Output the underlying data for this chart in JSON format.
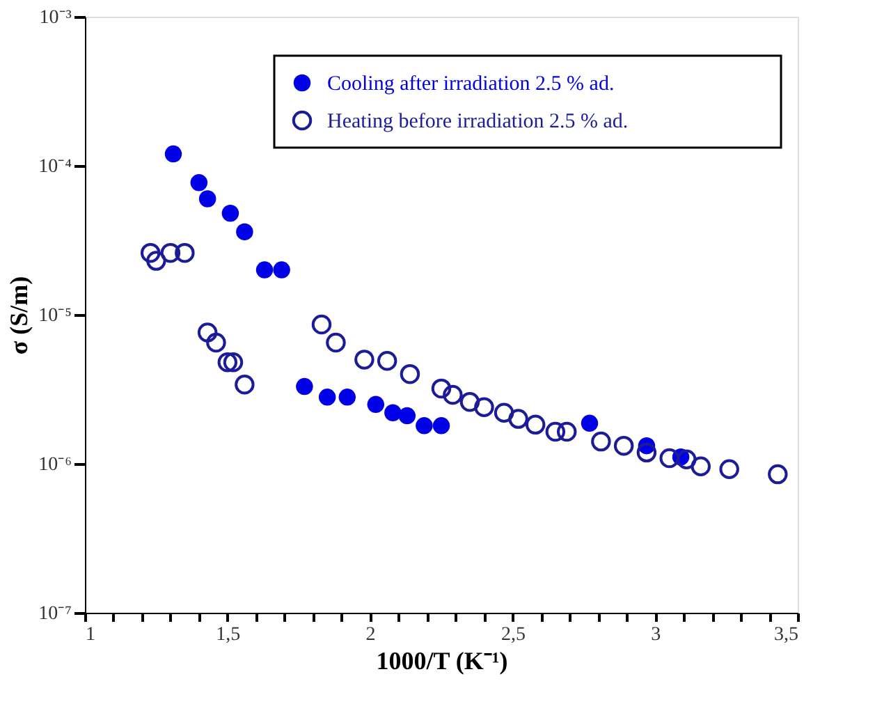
{
  "chart_data": {
    "type": "scatter",
    "xlabel": "1000/T (K⁻¹)",
    "ylabel": "σ (S/m)",
    "log": "y",
    "xlim": [
      1,
      3.5
    ],
    "ylim": [
      1e-07,
      0.001
    ],
    "xticks": [
      {
        "value": 1,
        "label": "1"
      },
      {
        "value": 1.1,
        "label": null
      },
      {
        "value": 1.2,
        "label": null
      },
      {
        "value": 1.3,
        "label": null
      },
      {
        "value": 1.4,
        "label": null
      },
      {
        "value": 1.5,
        "label": "1,5"
      },
      {
        "value": 1.6,
        "label": null
      },
      {
        "value": 1.7,
        "label": null
      },
      {
        "value": 1.8,
        "label": null
      },
      {
        "value": 1.9,
        "label": null
      },
      {
        "value": 2,
        "label": "2"
      },
      {
        "value": 2.1,
        "label": null
      },
      {
        "value": 2.2,
        "label": null
      },
      {
        "value": 2.3,
        "label": null
      },
      {
        "value": 2.4,
        "label": null
      },
      {
        "value": 2.5,
        "label": "2,5"
      },
      {
        "value": 2.6,
        "label": null
      },
      {
        "value": 2.7,
        "label": null
      },
      {
        "value": 2.8,
        "label": null
      },
      {
        "value": 2.9,
        "label": null
      },
      {
        "value": 3,
        "label": "3"
      },
      {
        "value": 3.1,
        "label": null
      },
      {
        "value": 3.2,
        "label": null
      },
      {
        "value": 3.3,
        "label": null
      },
      {
        "value": 3.4,
        "label": null
      },
      {
        "value": 3.5,
        "label": "3,5"
      }
    ],
    "yticks": [
      {
        "value": 1e-07,
        "label": "10⁻⁷"
      },
      {
        "value": 1e-06,
        "label": "10⁻⁶"
      },
      {
        "value": 1e-05,
        "label": "10⁻⁵"
      },
      {
        "value": 0.0001,
        "label": "10⁻⁴"
      },
      {
        "value": 0.001,
        "label": "10⁻³"
      }
    ],
    "grid": false,
    "legend": "top right",
    "marker": "circle",
    "series": [
      {
        "name": "Cooling after irradiation 2.5 % ad.",
        "color": "#0000e6",
        "x": [
          1.31,
          1.4,
          1.43,
          1.51,
          1.56,
          1.63,
          1.69,
          1.77,
          1.85,
          1.92,
          2.02,
          2.08,
          2.13,
          2.19,
          2.25,
          2.77,
          2.97,
          3.09
        ],
        "values": [
          0.00012,
          7.7e-05,
          6e-05,
          4.8e-05,
          3.6e-05,
          2e-05,
          2e-05,
          3.3e-06,
          2.8e-06,
          2.8e-06,
          2.5e-06,
          2.2e-06,
          2.1e-06,
          1.8e-06,
          1.8e-06,
          1.87e-06,
          1.32e-06,
          1.11e-06
        ]
      },
      {
        "name": "Heating before irradiation 2.5 % ad.",
        "color": "#1c1c99",
        "x": [
          1.23,
          1.25,
          1.3,
          1.35,
          1.43,
          1.46,
          1.5,
          1.52,
          1.56,
          1.83,
          1.88,
          1.98,
          2.06,
          2.14,
          2.25,
          2.29,
          2.35,
          2.4,
          2.47,
          2.52,
          2.58,
          2.65,
          2.69,
          2.81,
          2.89,
          2.97,
          3.05,
          3.11,
          3.16,
          3.26,
          3.43
        ],
        "values": [
          2.6e-05,
          2.3e-05,
          2.6e-05,
          2.6e-05,
          7.6e-06,
          6.5e-06,
          4.8e-06,
          4.8e-06,
          3.4e-06,
          8.6e-06,
          6.5e-06,
          5e-06,
          4.9e-06,
          4e-06,
          3.2e-06,
          2.9e-06,
          2.6e-06,
          2.4e-06,
          2.2e-06,
          2e-06,
          1.83e-06,
          1.64e-06,
          1.64e-06,
          1.41e-06,
          1.32e-06,
          1.19e-06,
          1.09e-06,
          1.07e-06,
          9.6e-07,
          9.2e-07,
          8.5e-07
        ]
      }
    ]
  }
}
